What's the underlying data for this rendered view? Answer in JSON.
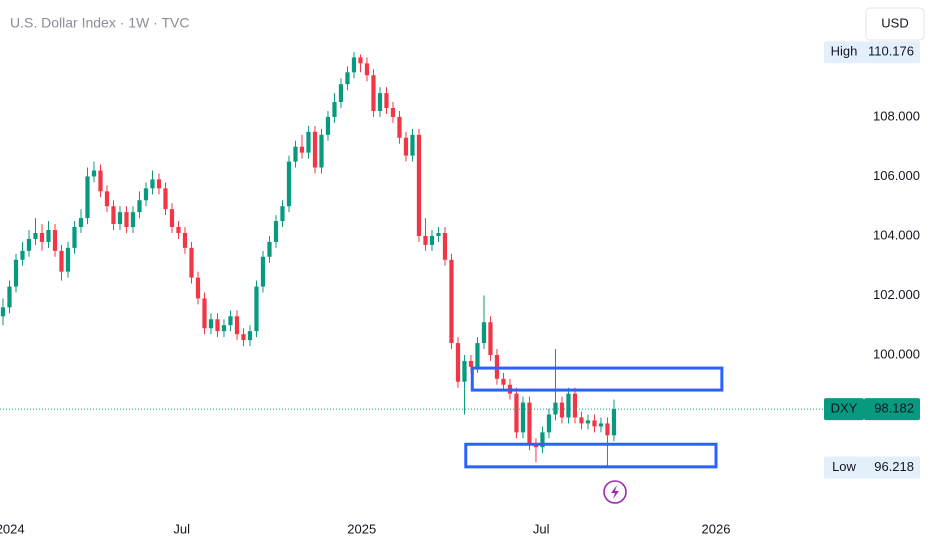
{
  "chart_data": {
    "type": "candlestick",
    "title": "U.S. Dollar Index · 1W · TVC",
    "currency": "USD",
    "up_color": "#089981",
    "down_color": "#f23645",
    "xlim": [
      -0.46,
      125.7
    ],
    "xticks": [
      {
        "value": 1.1,
        "label": "2024"
      },
      {
        "value": 27.5,
        "label": "Jul"
      },
      {
        "value": 55.2,
        "label": "2025"
      },
      {
        "value": 82.8,
        "label": "Jul"
      },
      {
        "value": 109.7,
        "label": "2026"
      }
    ],
    "ylim": [
      94.79,
      111.93
    ],
    "yticks": [
      {
        "value": 100,
        "label": "100.000"
      },
      {
        "value": 102,
        "label": "102.000"
      },
      {
        "value": 104,
        "label": "104.000"
      },
      {
        "value": 106,
        "label": "106.000"
      },
      {
        "value": 108,
        "label": "108.000"
      }
    ],
    "open": [
      101.3,
      101.6,
      102.3,
      103.2,
      103.5,
      103.9,
      104.1,
      103.8,
      104.2,
      103.5,
      102.8,
      103.6,
      104.3,
      104.6,
      106.0,
      106.2,
      105.5,
      105.0,
      104.4,
      104.8,
      104.3,
      104.8,
      105.2,
      105.6,
      105.9,
      105.6,
      104.9,
      104.3,
      104.1,
      103.6,
      102.6,
      101.9,
      100.9,
      101.2,
      100.8,
      101.0,
      101.3,
      100.7,
      100.5,
      100.8,
      102.3,
      103.3,
      103.8,
      104.5,
      105.0,
      106.5,
      107.0,
      106.8,
      107.5,
      106.3,
      107.4,
      108.0,
      108.5,
      109.1,
      109.5,
      110.0,
      109.8,
      109.4,
      108.2,
      108.8,
      108.3,
      108.0,
      107.3,
      106.7,
      107.4,
      104.0,
      103.7,
      104.0,
      104.1,
      103.2,
      100.4,
      99.1,
      99.8,
      99.6,
      100.4,
      101.1,
      100.0,
      99.2,
      99.0,
      98.7,
      97.4,
      98.4,
      97.0,
      96.9,
      97.4,
      98.0,
      98.4,
      97.9,
      98.7,
      97.9,
      97.7,
      97.8,
      97.6,
      97.7,
      97.3
    ],
    "high": [
      101.9,
      102.5,
      103.4,
      103.8,
      104.2,
      104.6,
      104.4,
      104.5,
      104.4,
      103.7,
      103.8,
      104.5,
      104.9,
      106.3,
      106.5,
      106.4,
      105.7,
      105.2,
      105.0,
      105.0,
      105.0,
      105.5,
      105.8,
      106.2,
      106.1,
      105.8,
      105.1,
      104.5,
      104.3,
      103.8,
      102.8,
      102.1,
      101.4,
      101.4,
      101.2,
      101.5,
      101.5,
      100.9,
      101.0,
      102.5,
      103.5,
      104.0,
      104.7,
      105.2,
      106.7,
      107.2,
      107.4,
      107.7,
      107.7,
      107.6,
      108.2,
      108.8,
      109.3,
      109.7,
      110.176,
      110.1,
      110.0,
      109.6,
      109.0,
      109.0,
      108.5,
      108.2,
      107.5,
      107.6,
      107.6,
      104.6,
      104.2,
      104.3,
      104.3,
      103.4,
      100.6,
      100.0,
      100.0,
      100.6,
      102.0,
      101.3,
      100.2,
      99.4,
      99.2,
      98.9,
      98.6,
      98.6,
      97.2,
      97.6,
      98.2,
      100.2,
      98.6,
      98.9,
      98.9,
      98.1,
      98.0,
      98.0,
      97.9,
      97.9,
      98.5
    ],
    "low": [
      101.0,
      101.4,
      102.1,
      103.0,
      103.3,
      103.7,
      103.5,
      103.6,
      103.3,
      102.5,
      102.6,
      103.4,
      104.1,
      104.4,
      105.8,
      105.3,
      104.8,
      104.2,
      104.2,
      104.1,
      104.1,
      104.6,
      105.0,
      105.4,
      105.4,
      104.7,
      104.1,
      103.9,
      103.4,
      102.4,
      101.7,
      100.7,
      100.7,
      100.6,
      100.6,
      100.8,
      100.5,
      100.3,
      100.3,
      100.6,
      102.1,
      103.1,
      103.6,
      104.3,
      104.8,
      106.3,
      106.6,
      106.6,
      106.1,
      106.1,
      107.2,
      107.8,
      108.3,
      108.9,
      109.3,
      109.5,
      109.2,
      108.0,
      108.0,
      108.1,
      107.8,
      107.1,
      106.5,
      106.5,
      103.8,
      103.5,
      103.5,
      103.8,
      103.0,
      100.2,
      98.9,
      98.0,
      99.4,
      99.4,
      100.2,
      99.8,
      99.0,
      98.8,
      98.5,
      97.2,
      97.2,
      96.8,
      96.4,
      96.7,
      97.2,
      97.8,
      97.7,
      97.7,
      97.7,
      97.5,
      97.5,
      97.4,
      97.4,
      96.218,
      97.1
    ],
    "close": [
      101.6,
      102.3,
      103.2,
      103.5,
      103.9,
      104.1,
      103.8,
      104.2,
      103.5,
      102.8,
      103.6,
      104.3,
      104.6,
      106.0,
      106.2,
      105.5,
      105.0,
      104.4,
      104.8,
      104.3,
      104.8,
      105.2,
      105.6,
      105.9,
      105.6,
      104.9,
      104.3,
      104.1,
      103.6,
      102.6,
      101.9,
      100.9,
      101.2,
      100.8,
      101.0,
      101.3,
      100.7,
      100.5,
      100.8,
      102.3,
      103.3,
      103.8,
      104.5,
      105.0,
      106.5,
      107.0,
      106.8,
      107.5,
      106.3,
      107.4,
      108.0,
      108.5,
      109.1,
      109.5,
      110.0,
      109.8,
      109.4,
      108.2,
      108.8,
      108.3,
      108.0,
      107.3,
      106.7,
      107.4,
      104.0,
      103.7,
      104.0,
      104.1,
      103.2,
      100.4,
      99.1,
      99.8,
      99.6,
      100.4,
      101.1,
      100.0,
      99.2,
      99.0,
      98.7,
      97.4,
      98.4,
      97.0,
      96.9,
      97.4,
      98.0,
      98.4,
      97.9,
      98.7,
      97.9,
      97.7,
      97.8,
      97.6,
      97.7,
      97.3,
      98.182
    ],
    "zones": [
      {
        "x": [
          72.2,
          110.6
        ],
        "y": [
          98.82,
          99.56
        ],
        "color": "#2962ff"
      },
      {
        "x": [
          71.2,
          109.7
        ],
        "y": [
          96.24,
          97.0
        ],
        "color": "#2962ff"
      }
    ],
    "price_labels": [
      {
        "label": "High",
        "value": 110.176,
        "style": "plain"
      },
      {
        "label": "DXY",
        "value": 98.182,
        "style": "last"
      },
      {
        "label": "Low",
        "value": 96.218,
        "style": "plain"
      }
    ]
  }
}
